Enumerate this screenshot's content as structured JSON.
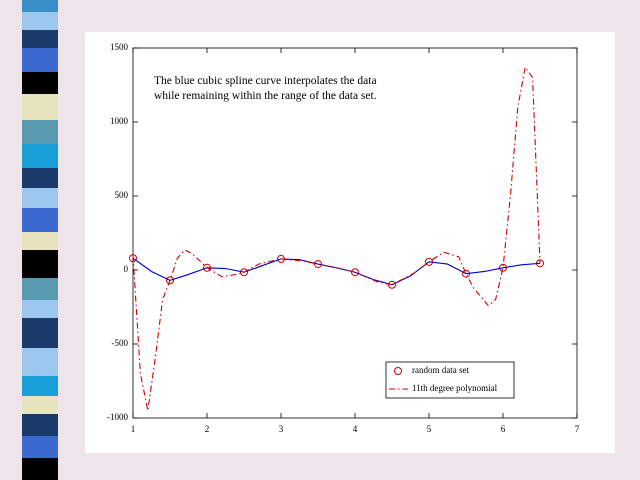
{
  "chart_data": {
    "type": "line",
    "annotation": "The blue cubic spline curve interpolates the data while remaining within the range of the data set.",
    "xlim": [
      1,
      7
    ],
    "xticks": [
      1,
      2,
      3,
      4,
      5,
      6,
      7
    ],
    "ylim": [
      -1000,
      1500
    ],
    "yticks": [
      -1000,
      -500,
      0,
      500,
      1000,
      1500
    ],
    "legend": "lower right",
    "series": [
      {
        "name": "random data set",
        "color": "#cc0000",
        "marker": "circle",
        "line": "none",
        "x": [
          1,
          1.5,
          2,
          2.5,
          3,
          3.5,
          4,
          4.5,
          5,
          5.5,
          6,
          6.5
        ],
        "values": [
          80,
          -70,
          15,
          -15,
          75,
          40,
          -15,
          -100,
          55,
          -25,
          15,
          45
        ]
      },
      {
        "color": "#0000cc",
        "marker": "none",
        "line": "solid",
        "x": [
          1,
          1.25,
          1.5,
          1.75,
          2,
          2.25,
          2.5,
          2.75,
          3,
          3.25,
          3.5,
          3.75,
          4,
          4.25,
          4.5,
          4.75,
          5,
          5.25,
          5.5,
          5.75,
          6,
          6.25,
          6.5
        ],
        "values": [
          80,
          -10,
          -70,
          -30,
          15,
          10,
          -15,
          30,
          75,
          70,
          40,
          15,
          -15,
          -65,
          -100,
          -40,
          55,
          40,
          -25,
          -10,
          15,
          35,
          45
        ]
      },
      {
        "name": "11th degree polynomial",
        "color": "#cc0000",
        "marker": "none",
        "line": "dashdot",
        "x": [
          1,
          1.1,
          1.2,
          1.3,
          1.4,
          1.5,
          1.6,
          1.7,
          1.8,
          2,
          2.2,
          2.4,
          2.5,
          2.7,
          3,
          3.3,
          3.5,
          3.8,
          4,
          4.3,
          4.5,
          4.8,
          5,
          5.2,
          5.4,
          5.5,
          5.6,
          5.8,
          5.9,
          6,
          6.1,
          6.2,
          6.3,
          6.4,
          6.5
        ],
        "values": [
          100,
          -700,
          -950,
          -600,
          -200,
          -70,
          80,
          135,
          110,
          15,
          -45,
          -30,
          -15,
          40,
          75,
          60,
          40,
          10,
          -15,
          -80,
          -100,
          -20,
          55,
          120,
          90,
          -25,
          -120,
          -240,
          -200,
          15,
          500,
          1100,
          1370,
          1300,
          45
        ]
      }
    ]
  }
}
